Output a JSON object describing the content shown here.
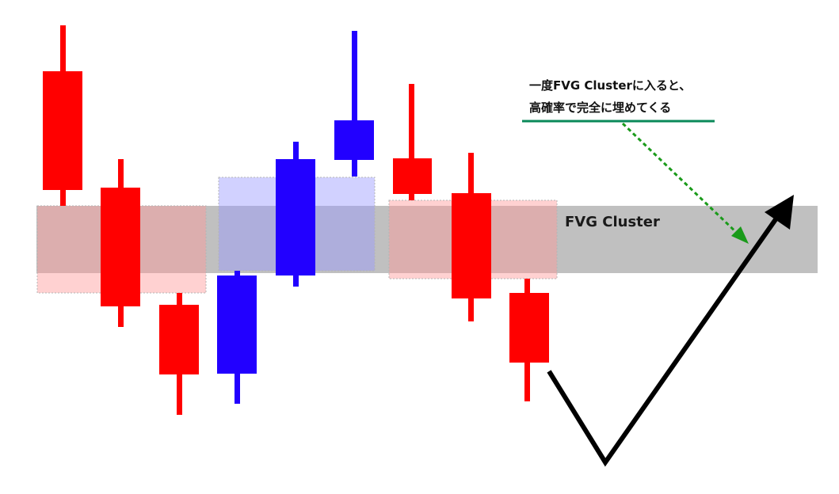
{
  "cluster": {
    "label": "FVG Cluster",
    "color": "#c0c0c0"
  },
  "annotation": {
    "line1": "一度FVG Clusterに入ると、",
    "line2": "高確率で完全に埋めてくる",
    "underline_color": "#0a8a5a",
    "arrow_color": "#1a9a1a"
  },
  "colors": {
    "bearish": "#ff0000",
    "bullish": "#2200ff",
    "fvg_bearish": "#ffb8b8",
    "fvg_bullish": "#b8b8ff",
    "path": "#000000"
  }
}
